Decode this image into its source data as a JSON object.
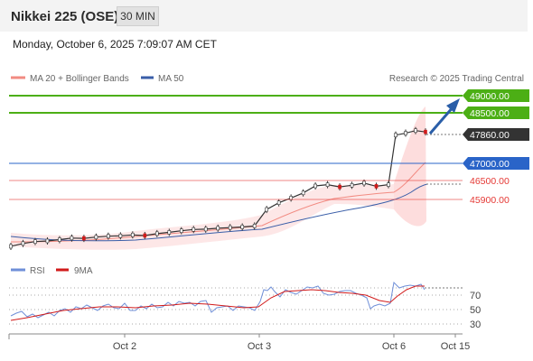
{
  "header": {
    "title": "Nikkei 225 (OSE)",
    "timeframe": "30 MIN",
    "datetime": "Monday, October 6, 2025 7:09:07 AM CET"
  },
  "legend": {
    "ma20": "MA 20 + Bollinger Bands",
    "ma50": "MA 50",
    "source": "Research © 2025 Trading Central",
    "ma20_color": "#f28b82",
    "ma50_color": "#3a5ea8"
  },
  "rsi_legend": {
    "rsi": "RSI",
    "ma9": "9MA",
    "rsi_color": "#6f8fd8",
    "ma9_color": "#d11a1a"
  },
  "levels": {
    "l49000": "49000.00",
    "l48500": "48500.00",
    "last": "47860.00",
    "l47000": "47000.00",
    "l46500": "46500.00",
    "l45900": "45900.00"
  },
  "colors": {
    "resistance": "#4caf15",
    "pivot": "#2a64c8",
    "support": "#e53935",
    "last": "#333333",
    "arrow": "#2a5ea8"
  },
  "x_labels": [
    "Oct 2",
    "Oct 3",
    "Oct 6",
    "Oct 15"
  ],
  "rsi_labels": [
    "70",
    "50",
    "30"
  ],
  "chart_data": {
    "type": "candlestick",
    "title": "Nikkei 225 (OSE)",
    "timeframe": "30 MIN",
    "ylim": [
      44200,
      49400
    ],
    "levels": [
      {
        "label": "49000.00",
        "value": 49000,
        "kind": "resistance"
      },
      {
        "label": "48500.00",
        "value": 48500,
        "kind": "resistance"
      },
      {
        "label": "47860.00",
        "value": 47860,
        "kind": "last"
      },
      {
        "label": "47000.00",
        "value": 47000,
        "kind": "pivot"
      },
      {
        "label": "46500.00",
        "value": 46500,
        "kind": "support"
      },
      {
        "label": "45900.00",
        "value": 45900,
        "kind": "support"
      }
    ],
    "close_path": [
      {
        "date": "Oct 1",
        "close": 44260
      },
      {
        "date": "Oct 1",
        "close": 44350
      },
      {
        "date": "Oct 1",
        "close": 44410
      },
      {
        "date": "Oct 1",
        "close": 44430
      },
      {
        "date": "Oct 1",
        "close": 44470
      },
      {
        "date": "Oct 1",
        "close": 44520
      },
      {
        "date": "Oct 1",
        "close": 44510
      },
      {
        "date": "Oct 1",
        "close": 44550
      },
      {
        "date": "Oct 1",
        "close": 44580
      },
      {
        "date": "Oct 2",
        "close": 44590
      },
      {
        "date": "Oct 2",
        "close": 44620
      },
      {
        "date": "Oct 2",
        "close": 44600
      },
      {
        "date": "Oct 2",
        "close": 44660
      },
      {
        "date": "Oct 2",
        "close": 44700
      },
      {
        "date": "Oct 2",
        "close": 44750
      },
      {
        "date": "Oct 2",
        "close": 44790
      },
      {
        "date": "Oct 2",
        "close": 44800
      },
      {
        "date": "Oct 2",
        "close": 44830
      },
      {
        "date": "Oct 2",
        "close": 44850
      },
      {
        "date": "Oct 2",
        "close": 44870
      },
      {
        "date": "Oct 3",
        "close": 44900
      },
      {
        "date": "Oct 3",
        "close": 45420
      },
      {
        "date": "Oct 3",
        "close": 45630
      },
      {
        "date": "Oct 3",
        "close": 45780
      },
      {
        "date": "Oct 3",
        "close": 45940
      },
      {
        "date": "Oct 3",
        "close": 46160
      },
      {
        "date": "Oct 3",
        "close": 46200
      },
      {
        "date": "Oct 3",
        "close": 46130
      },
      {
        "date": "Oct 3",
        "close": 46180
      },
      {
        "date": "Oct 3",
        "close": 46250
      },
      {
        "date": "Oct 3",
        "close": 46150
      },
      {
        "date": "Oct 3",
        "close": 46200
      },
      {
        "date": "Oct 6",
        "close": 47760
      },
      {
        "date": "Oct 6",
        "close": 47820
      },
      {
        "date": "Oct 6",
        "close": 47900
      },
      {
        "date": "Oct 6",
        "close": 47860
      }
    ],
    "projection": {
      "from": 47860,
      "to": 49000
    },
    "rsi": {
      "ylim": [
        0,
        100
      ],
      "levels": [
        70,
        50,
        30
      ]
    }
  }
}
